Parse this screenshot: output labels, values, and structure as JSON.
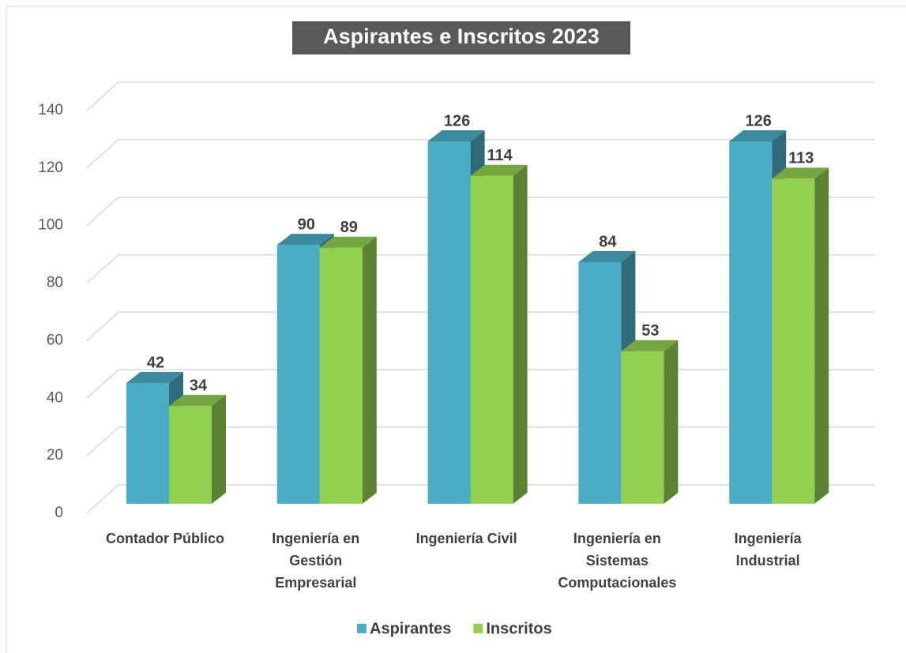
{
  "chart_data": {
    "type": "bar3d",
    "title": "Aspirantes e Inscritos 2023",
    "categories": [
      "Contador Público",
      "Ingeniería en Gestión Empresarial",
      "Ingeniería Civil",
      "Ingeniería en Sistemas Computacionales",
      "Ingeniería Industrial"
    ],
    "series": [
      {
        "name": "Aspirantes",
        "color": "#4bacc6",
        "values": [
          42,
          90,
          126,
          84,
          126
        ]
      },
      {
        "name": "Inscritos",
        "color": "#92d050",
        "values": [
          34,
          89,
          114,
          53,
          113
        ]
      }
    ],
    "ylim": [
      0,
      140
    ],
    "yticks": [
      0,
      20,
      40,
      60,
      80,
      100,
      120,
      140
    ],
    "grid": true,
    "legend": "bottom"
  }
}
